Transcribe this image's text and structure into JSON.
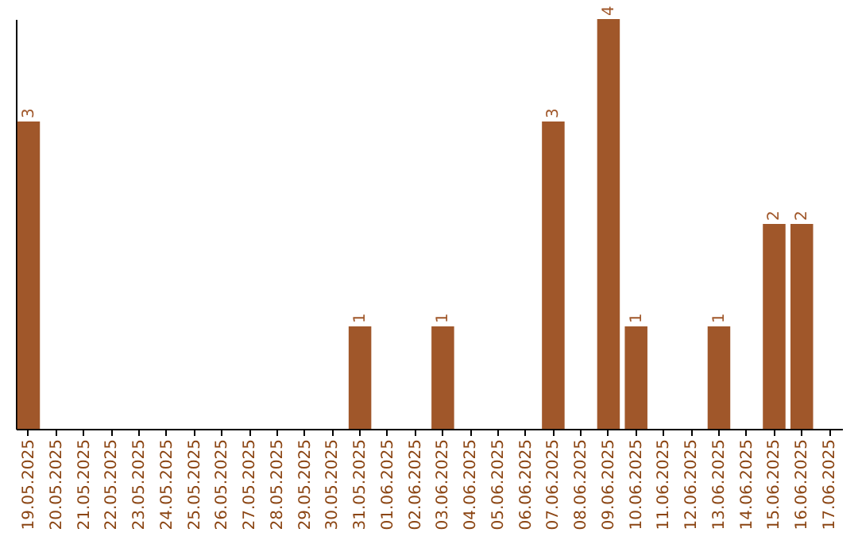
{
  "chart_data": {
    "type": "bar",
    "categories": [
      "19.05.2025",
      "20.05.2025",
      "21.05.2025",
      "22.05.2025",
      "23.05.2025",
      "24.05.2025",
      "25.05.2025",
      "26.05.2025",
      "27.05.2025",
      "28.05.2025",
      "29.05.2025",
      "30.05.2025",
      "31.05.2025",
      "01.06.2025",
      "02.06.2025",
      "03.06.2025",
      "04.06.2025",
      "05.06.2025",
      "06.06.2025",
      "07.06.2025",
      "08.06.2025",
      "09.06.2025",
      "10.06.2025",
      "11.06.2025",
      "12.06.2025",
      "13.06.2025",
      "14.06.2025",
      "15.06.2025",
      "16.06.2025",
      "17.06.2025"
    ],
    "values": [
      3,
      0,
      0,
      0,
      0,
      0,
      0,
      0,
      0,
      0,
      0,
      0,
      1,
      0,
      0,
      1,
      0,
      0,
      0,
      3,
      0,
      4,
      1,
      0,
      0,
      1,
      0,
      2,
      2,
      0
    ],
    "value_labels": [
      "3",
      null,
      null,
      null,
      null,
      null,
      null,
      null,
      null,
      null,
      null,
      null,
      "1",
      null,
      null,
      "1",
      null,
      null,
      null,
      "3",
      null,
      "4",
      "1",
      null,
      null,
      "1",
      null,
      "2",
      "2",
      null
    ],
    "color": "#a0572a",
    "tick_labels": "x",
    "grid": false
  }
}
